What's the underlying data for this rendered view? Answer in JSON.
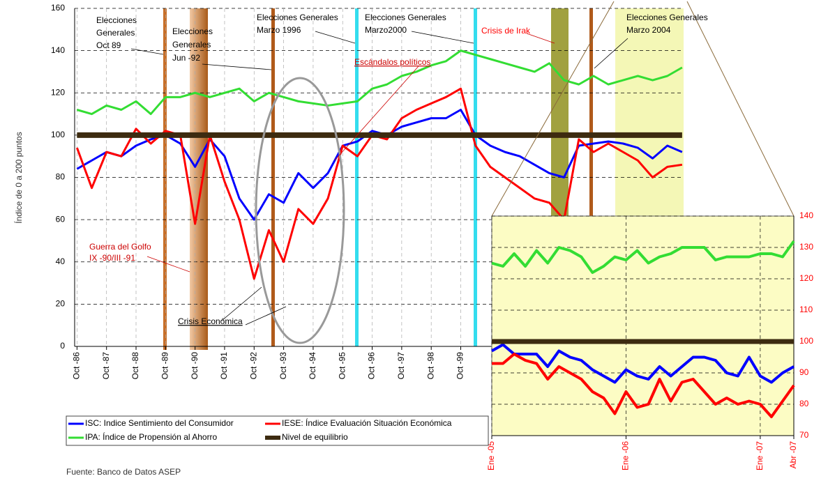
{
  "chart_data": [
    {
      "type": "line",
      "y_label": "Índice de 0 a 200 puntos",
      "source": "Fuente: Banco de Datos ASEP",
      "annotations": [
        {
          "lines": [
            "Elecciones",
            "Generales",
            "Oct  89"
          ],
          "color": "#000000"
        },
        {
          "lines": [
            "Elecciones",
            "Generales",
            "Jun -92"
          ],
          "color": "#000000"
        },
        {
          "lines": [
            "Elecciones Generales",
            "Marzo 1996"
          ],
          "color": "#000000"
        },
        {
          "lines": [
            "Elecciones Generales",
            "Marzo2000"
          ],
          "color": "#000000"
        },
        {
          "lines": [
            "Crisis de Irak"
          ],
          "color": "#ff0000"
        },
        {
          "lines": [
            "Elecciones Generales",
            "Marzo 2004"
          ],
          "color": "#000000"
        },
        {
          "lines": [
            "Escándalos políticos"
          ],
          "color": "#cc0000"
        },
        {
          "lines": [
            "Guerra del Golfo",
            "IX -90/III -91"
          ],
          "color": "#cc0000"
        },
        {
          "lines": [
            "Crisis Económica"
          ],
          "color": "#000000"
        }
      ],
      "x": [
        1986.75,
        1987.25,
        1987.75,
        1988.25,
        1988.75,
        1989.25,
        1989.75,
        1990.25,
        1990.75,
        1991.25,
        1991.75,
        1992.25,
        1992.75,
        1993.25,
        1993.75,
        1994.25,
        1994.75,
        1995.25,
        1995.75,
        1996.25,
        1996.75,
        1997.25,
        1997.75,
        1998.25,
        1998.75,
        1999.25,
        1999.75,
        2000.25,
        2000.75,
        2001.25,
        2001.75,
        2002.25,
        2002.75,
        2003.25,
        2003.75,
        2004.25,
        2004.75,
        2005.25,
        2005.75,
        2006.25,
        2006.75,
        2007.25
      ],
      "series": [
        {
          "name": "ISC: Indice Sentimiento del Consumidor",
          "color": "#0000ff",
          "width": 3,
          "values": [
            84,
            88,
            92,
            90,
            95,
            98,
            100,
            96,
            85,
            98,
            90,
            70,
            60,
            72,
            68,
            82,
            75,
            82,
            95,
            97,
            102,
            100,
            104,
            106,
            108,
            108,
            112,
            100,
            95,
            92,
            90,
            86,
            82,
            80,
            95,
            96,
            97,
            96,
            94,
            89,
            95,
            92
          ]
        },
        {
          "name": "IESE: Índice Evaluación Situación Económica",
          "color": "#ff0000",
          "width": 3,
          "values": [
            94,
            75,
            92,
            90,
            103,
            96,
            102,
            100,
            58,
            100,
            78,
            60,
            32,
            55,
            40,
            65,
            58,
            70,
            95,
            90,
            100,
            98,
            108,
            112,
            115,
            118,
            122,
            95,
            85,
            80,
            75,
            70,
            68,
            60,
            98,
            92,
            96,
            92,
            88,
            80,
            85,
            86
          ]
        },
        {
          "name": "IPA: Índice de Propensión al Ahorro",
          "color": "#33dd33",
          "width": 3,
          "values": [
            112,
            110,
            114,
            112,
            116,
            110,
            118,
            118,
            120,
            118,
            120,
            122,
            116,
            120,
            118,
            116,
            115,
            114,
            115,
            116,
            122,
            124,
            128,
            130,
            133,
            135,
            140,
            138,
            136,
            134,
            132,
            130,
            134,
            126,
            124,
            128,
            124,
            126,
            128,
            126,
            128,
            132
          ]
        },
        {
          "name": "Nivel de equilibrio",
          "color": "#3d2b10",
          "width": 8,
          "values": [
            100,
            100,
            100,
            100,
            100,
            100,
            100,
            100,
            100,
            100,
            100,
            100,
            100,
            100,
            100,
            100,
            100,
            100,
            100,
            100,
            100,
            100,
            100,
            100,
            100,
            100,
            100,
            100,
            100,
            100,
            100,
            100,
            100,
            100,
            100,
            100,
            100,
            100,
            100,
            100,
            100,
            100
          ]
        }
      ],
      "xlim": [
        1986.67,
        2007.3
      ],
      "xticks": [
        {
          "value": 1986.75,
          "label": "Oct -86"
        },
        {
          "value": 1987.75,
          "label": "Oct -87"
        },
        {
          "value": 1988.75,
          "label": "Oct -88"
        },
        {
          "value": 1989.75,
          "label": "Oct -89"
        },
        {
          "value": 1990.75,
          "label": "Oct -90"
        },
        {
          "value": 1991.75,
          "label": "Oct -91"
        },
        {
          "value": 1992.75,
          "label": "Oct -92"
        },
        {
          "value": 1993.75,
          "label": "Oct -93"
        },
        {
          "value": 1994.75,
          "label": "Oct -94"
        },
        {
          "value": 1995.75,
          "label": "Oct -95"
        },
        {
          "value": 1996.75,
          "label": "Oct -96"
        },
        {
          "value": 1997.75,
          "label": "Oct -97"
        },
        {
          "value": 1998.75,
          "label": "Oct -98"
        },
        {
          "value": 1999.75,
          "label": "Oct -99"
        }
      ],
      "ylim": [
        0,
        160
      ],
      "yticks": [
        0,
        20,
        40,
        60,
        80,
        100,
        120,
        140,
        160
      ],
      "grid": true
    },
    {
      "type": "line",
      "x": [
        0,
        1,
        2,
        3,
        4,
        5,
        6,
        7,
        8,
        9,
        10,
        11,
        12,
        13,
        14,
        15,
        16,
        17,
        18,
        19,
        20,
        21,
        22,
        23,
        24,
        25,
        26,
        27
      ],
      "series": [
        {
          "color": "#0000ff",
          "width": 4,
          "values": [
            97,
            99,
            96,
            96,
            96,
            92,
            97,
            95,
            94,
            91,
            89,
            87,
            91,
            89,
            88,
            92,
            89,
            92,
            95,
            95,
            94,
            90,
            89,
            95,
            89,
            87,
            90,
            92
          ]
        },
        {
          "color": "#ff0000",
          "width": 4,
          "values": [
            93,
            93,
            96,
            94,
            93,
            88,
            92,
            90,
            88,
            84,
            82,
            77,
            84,
            79,
            80,
            88,
            81,
            87,
            88,
            84,
            80,
            82,
            80,
            81,
            80,
            76,
            81,
            86
          ]
        },
        {
          "color": "#33dd33",
          "width": 4,
          "values": [
            125,
            124,
            128,
            124,
            129,
            125,
            130,
            129,
            127,
            122,
            124,
            127,
            126,
            129,
            125,
            127,
            128,
            130,
            130,
            130,
            126,
            127,
            127,
            127,
            128,
            128,
            127,
            132
          ]
        },
        {
          "color": "#3d2b10",
          "width": 7,
          "values": [
            100,
            100,
            100,
            100,
            100,
            100,
            100,
            100,
            100,
            100,
            100,
            100,
            100,
            100,
            100,
            100,
            100,
            100,
            100,
            100,
            100,
            100,
            100,
            100,
            100,
            100,
            100,
            100
          ]
        }
      ],
      "xlim": [
        0,
        27
      ],
      "xticks": [
        {
          "value": 0,
          "label": "Ene -05"
        },
        {
          "value": 12,
          "label": "Ene -06"
        },
        {
          "value": 24,
          "label": "Ene -07"
        },
        {
          "value": 27,
          "label": "Abr -07"
        }
      ],
      "y2lim": [
        70,
        140
      ],
      "y2ticks": [
        70,
        80,
        90,
        100,
        110,
        120,
        130,
        140
      ],
      "grid": true
    }
  ]
}
